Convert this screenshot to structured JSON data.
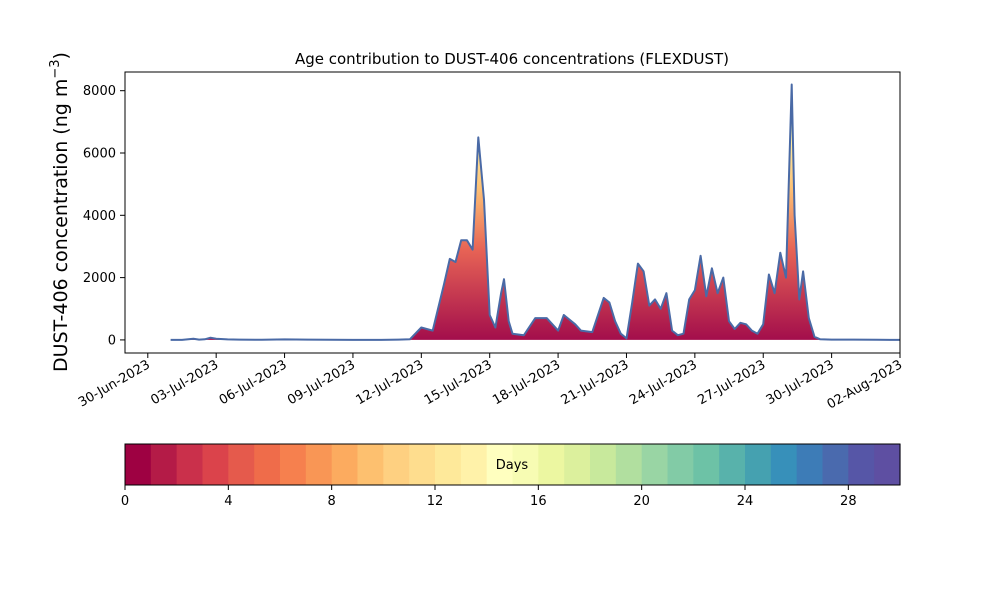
{
  "chart_data": {
    "type": "area",
    "title": "Age contribution to DUST-406 concentrations (FLEXDUST)",
    "ylabel": "DUST-406 concentration (ng m⁻³)",
    "ylabel_main": "DUST-406 concentration (ng m",
    "ylabel_sup": "−3",
    "ylabel_tail": ")",
    "xlabel": "",
    "x_type": "date",
    "xlim": [
      "2023-06-29",
      "2023-08-02"
    ],
    "ylim": [
      -420,
      8600
    ],
    "x_ticks": [
      "30-Jun-2023",
      "03-Jul-2023",
      "06-Jul-2023",
      "09-Jul-2023",
      "12-Jul-2023",
      "15-Jul-2023",
      "18-Jul-2023",
      "21-Jul-2023",
      "24-Jul-2023",
      "27-Jul-2023",
      "30-Jul-2023",
      "02-Aug-2023"
    ],
    "x_tick_dates": [
      "2023-06-30",
      "2023-07-03",
      "2023-07-06",
      "2023-07-09",
      "2023-07-12",
      "2023-07-15",
      "2023-07-18",
      "2023-07-21",
      "2023-07-24",
      "2023-07-27",
      "2023-07-30",
      "2023-08-02"
    ],
    "y_ticks": [
      0,
      2000,
      4000,
      6000,
      8000
    ],
    "series": [
      {
        "type": "line",
        "color": "#4a6aa6",
        "points": [
          [
            "2023-07-01",
            0
          ],
          [
            "2023-07-01 12:00",
            0
          ],
          [
            "2023-07-02",
            40
          ],
          [
            "2023-07-02 06:00",
            10
          ],
          [
            "2023-07-02 12:00",
            20
          ],
          [
            "2023-07-02 18:00",
            70
          ],
          [
            "2023-07-03",
            40
          ],
          [
            "2023-07-03 12:00",
            15
          ],
          [
            "2023-07-04",
            10
          ],
          [
            "2023-07-05",
            5
          ],
          [
            "2023-07-06",
            15
          ],
          [
            "2023-07-07",
            10
          ],
          [
            "2023-07-08",
            5
          ],
          [
            "2023-07-09",
            0
          ],
          [
            "2023-07-10",
            0
          ],
          [
            "2023-07-11",
            10
          ],
          [
            "2023-07-11 12:00",
            20
          ],
          [
            "2023-07-12",
            400
          ],
          [
            "2023-07-12 12:00",
            300
          ],
          [
            "2023-07-13",
            1800
          ],
          [
            "2023-07-13 06:00",
            2600
          ],
          [
            "2023-07-13 12:00",
            2500
          ],
          [
            "2023-07-13 18:00",
            3200
          ],
          [
            "2023-07-14",
            3200
          ],
          [
            "2023-07-14 06:00",
            2900
          ],
          [
            "2023-07-14 12:00",
            6500
          ],
          [
            "2023-07-14 18:00",
            4500
          ],
          [
            "2023-07-15",
            800
          ],
          [
            "2023-07-15 06:00",
            400
          ],
          [
            "2023-07-15 12:00",
            1500
          ],
          [
            "2023-07-15 15:00",
            1950
          ],
          [
            "2023-07-15 20:00",
            600
          ],
          [
            "2023-07-16",
            200
          ],
          [
            "2023-07-16 12:00",
            150
          ],
          [
            "2023-07-17",
            700
          ],
          [
            "2023-07-17 12:00",
            700
          ],
          [
            "2023-07-18",
            300
          ],
          [
            "2023-07-18 06:00",
            800
          ],
          [
            "2023-07-18 18:00",
            500
          ],
          [
            "2023-07-19",
            300
          ],
          [
            "2023-07-19 12:00",
            250
          ],
          [
            "2023-07-20",
            1350
          ],
          [
            "2023-07-20 06:00",
            1200
          ],
          [
            "2023-07-20 12:00",
            600
          ],
          [
            "2023-07-20 18:00",
            200
          ],
          [
            "2023-07-21",
            50
          ],
          [
            "2023-07-21 06:00",
            1200
          ],
          [
            "2023-07-21 12:00",
            2450
          ],
          [
            "2023-07-21 18:00",
            2200
          ],
          [
            "2023-07-22",
            1100
          ],
          [
            "2023-07-22 06:00",
            1300
          ],
          [
            "2023-07-22 12:00",
            1000
          ],
          [
            "2023-07-22 18:00",
            1500
          ],
          [
            "2023-07-23",
            300
          ],
          [
            "2023-07-23 06:00",
            150
          ],
          [
            "2023-07-23 12:00",
            200
          ],
          [
            "2023-07-23 18:00",
            1300
          ],
          [
            "2023-07-24",
            1600
          ],
          [
            "2023-07-24 06:00",
            2700
          ],
          [
            "2023-07-24 12:00",
            1400
          ],
          [
            "2023-07-24 18:00",
            2300
          ],
          [
            "2023-07-25",
            1500
          ],
          [
            "2023-07-25 06:00",
            2000
          ],
          [
            "2023-07-25 12:00",
            600
          ],
          [
            "2023-07-25 18:00",
            350
          ],
          [
            "2023-07-26",
            550
          ],
          [
            "2023-07-26 06:00",
            500
          ],
          [
            "2023-07-26 12:00",
            300
          ],
          [
            "2023-07-26 18:00",
            200
          ],
          [
            "2023-07-27",
            500
          ],
          [
            "2023-07-27 06:00",
            2100
          ],
          [
            "2023-07-27 12:00",
            1500
          ],
          [
            "2023-07-27 18:00",
            2800
          ],
          [
            "2023-07-28",
            2000
          ],
          [
            "2023-07-28 06:00",
            8200
          ],
          [
            "2023-07-28 09:00",
            4000
          ],
          [
            "2023-07-28 14:00",
            1300
          ],
          [
            "2023-07-28 18:00",
            2200
          ],
          [
            "2023-07-29",
            700
          ],
          [
            "2023-07-29 06:00",
            100
          ],
          [
            "2023-07-29 12:00",
            20
          ],
          [
            "2023-07-30",
            10
          ],
          [
            "2023-07-31",
            10
          ],
          [
            "2023-08-01",
            5
          ],
          [
            "2023-08-02",
            0
          ]
        ]
      }
    ],
    "area_fill": "Stacked age contributions from 0 to 30 days, drawn with the colorbar colors",
    "colorbar": {
      "label": "Days",
      "range": [
        0,
        30
      ],
      "ticks": [
        0,
        4,
        8,
        12,
        16,
        20,
        24,
        28
      ],
      "colors": [
        "#9e0142",
        "#b41b47",
        "#ca304b",
        "#db434b",
        "#e55a4c",
        "#ef6c4a",
        "#f6804e",
        "#f99655",
        "#fcab5f",
        "#fdc06f",
        "#fed081",
        "#fedd8e",
        "#fee99a",
        "#fff2a9",
        "#ffffbf",
        "#f7fcb3",
        "#ecf7a1",
        "#dcf09d",
        "#c8e99c",
        "#b1df9f",
        "#99d5a4",
        "#82cba6",
        "#6dc2a6",
        "#58b2ab",
        "#45a1b0",
        "#3790ba",
        "#3d7cb7",
        "#4a6aae",
        "#5656a7",
        "#5e4fa2"
      ]
    }
  }
}
